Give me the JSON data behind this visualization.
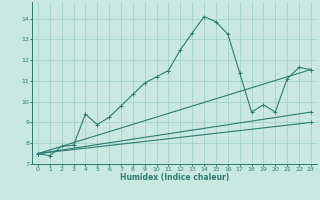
{
  "xlabel": "Humidex (Indice chaleur)",
  "xlim": [
    -0.5,
    23.5
  ],
  "ylim": [
    7,
    14.8
  ],
  "yticks": [
    7,
    8,
    9,
    10,
    11,
    12,
    13,
    14
  ],
  "xticks": [
    0,
    1,
    2,
    3,
    4,
    5,
    6,
    7,
    8,
    9,
    10,
    11,
    12,
    13,
    14,
    15,
    16,
    17,
    18,
    19,
    20,
    21,
    22,
    23
  ],
  "bg_color": "#c8e8e0",
  "grid_color": "#9ecfca",
  "line_color": "#2e7d6e",
  "line1_x": [
    0,
    1,
    2,
    3,
    4,
    5,
    6,
    7,
    8,
    9,
    10,
    11,
    12,
    13,
    14,
    15,
    16,
    17,
    18,
    19,
    20,
    21,
    22,
    23
  ],
  "line1_y": [
    7.5,
    7.4,
    7.85,
    7.9,
    9.4,
    8.9,
    9.25,
    9.8,
    10.35,
    10.9,
    11.2,
    11.5,
    12.5,
    13.3,
    14.1,
    13.85,
    13.25,
    11.4,
    9.5,
    9.85,
    9.5,
    11.1,
    11.65,
    11.55
  ],
  "line2_x": [
    0,
    23
  ],
  "line2_y": [
    7.5,
    11.55
  ],
  "line3_x": [
    0,
    23
  ],
  "line3_y": [
    7.5,
    9.5
  ],
  "line4_x": [
    0,
    23
  ],
  "line4_y": [
    7.5,
    9.0
  ]
}
